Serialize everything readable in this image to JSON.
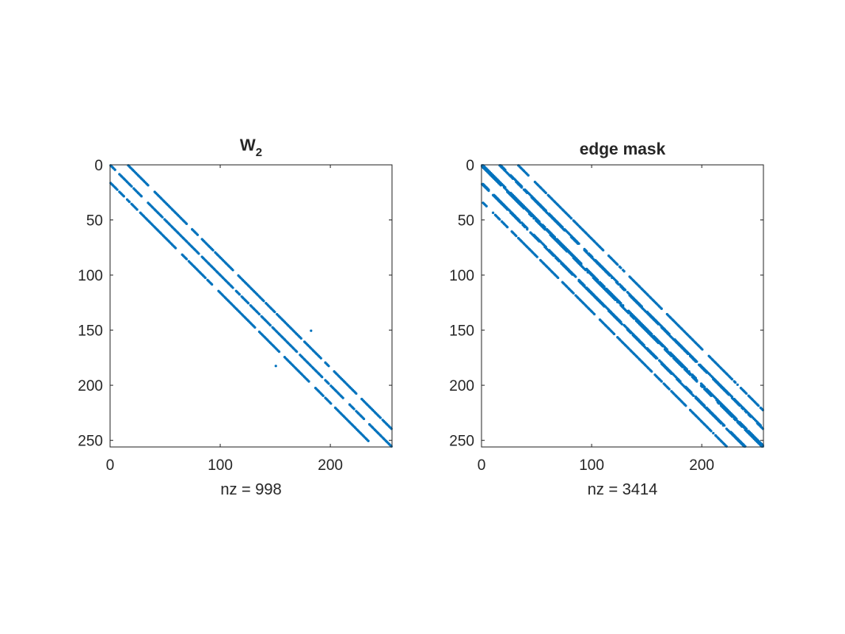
{
  "chart_data": [
    {
      "type": "spy",
      "title": "W",
      "title_subscript": "2",
      "xlabel": "nz = 998",
      "nz": 998,
      "size": [
        256,
        256
      ],
      "xlim": [
        0,
        256
      ],
      "ylim": [
        0,
        256
      ],
      "xticks": [
        0,
        100,
        200
      ],
      "yticks": [
        0,
        50,
        100,
        150,
        200,
        250
      ],
      "xtick_labels": [
        "0",
        "100",
        "200"
      ],
      "ytick_labels": [
        "0",
        "50",
        "100",
        "150",
        "200",
        "250"
      ],
      "diagonal_offsets": [
        0,
        16,
        -16
      ],
      "fill_fraction": 0.82,
      "outliers": [
        [
          150,
          182
        ],
        [
          182,
          150
        ]
      ],
      "color": "#0072BD"
    },
    {
      "type": "spy",
      "title": "edge mask",
      "xlabel": "nz = 3414",
      "nz": 3414,
      "size": [
        256,
        256
      ],
      "xlim": [
        0,
        256
      ],
      "ylim": [
        0,
        256
      ],
      "xticks": [
        0,
        100,
        200
      ],
      "yticks": [
        0,
        50,
        100,
        150,
        200,
        250
      ],
      "xtick_labels": [
        "0",
        "100",
        "200"
      ],
      "ytick_labels": [
        "0",
        "50",
        "100",
        "150",
        "200",
        "250"
      ],
      "diagonal_offsets": [
        0,
        1,
        -1,
        16,
        -16,
        17,
        -17,
        33,
        -33
      ],
      "fill_fraction": 0.82,
      "outliers": [],
      "color": "#0072BD"
    }
  ]
}
